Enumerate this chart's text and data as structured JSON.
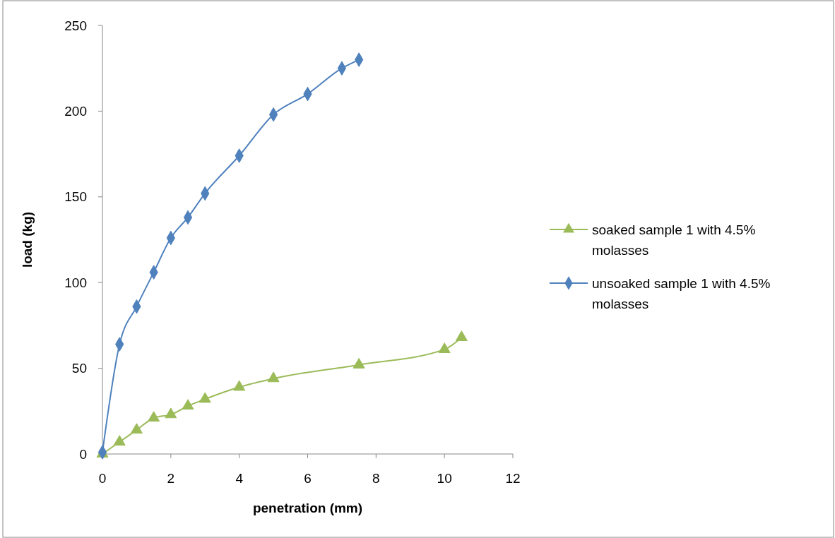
{
  "chart_data": {
    "type": "line",
    "xlabel": "penetration (mm)",
    "ylabel": "load (kg)",
    "xlim": [
      0,
      12
    ],
    "xticks": [
      0,
      2,
      4,
      6,
      8,
      10,
      12
    ],
    "ylim": [
      0,
      250
    ],
    "yticks": [
      0,
      50,
      100,
      150,
      200,
      250
    ],
    "legend": "right",
    "grid": false,
    "line_style": "solid",
    "series": [
      {
        "name": "soaked sample 1 with 4.5% molasses",
        "color": "#9bbb59",
        "marker": "triangle",
        "x": [
          0,
          0.5,
          1,
          1.5,
          2,
          2.5,
          3,
          4,
          5,
          7.5,
          10,
          10.5
        ],
        "values": [
          0,
          7,
          14,
          21,
          23,
          28,
          32,
          39,
          44,
          52,
          61,
          68
        ]
      },
      {
        "name": "unsoaked sample 1 with 4.5% molasses",
        "color": "#4f81bd",
        "marker": "diamond",
        "x": [
          0,
          0.5,
          1,
          1.5,
          2,
          2.5,
          3,
          4,
          5,
          6,
          7,
          7.5
        ],
        "values": [
          1,
          64,
          86,
          106,
          126,
          138,
          152,
          174,
          198,
          210,
          225,
          230
        ]
      }
    ]
  }
}
